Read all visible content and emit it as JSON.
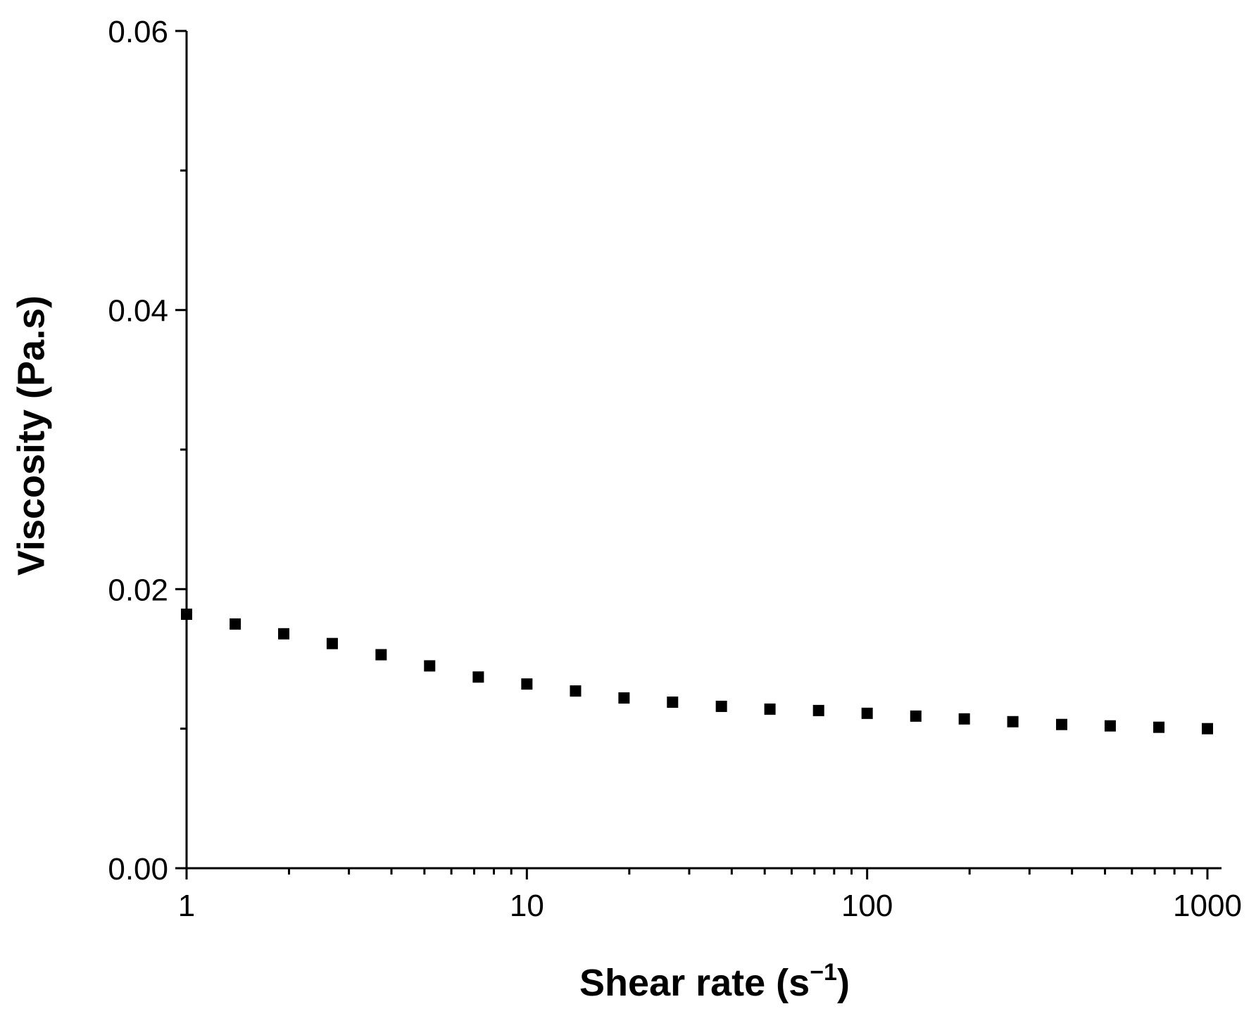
{
  "chart_data": {
    "type": "scatter",
    "title": "",
    "xlabel": "Shear rate (s",
    "xlabel_sup": "−1",
    "xlabel_close": ")",
    "ylabel": "Viscosity (Pa.s)",
    "xscale": "log",
    "xlim": [
      1,
      1000
    ],
    "ylim": [
      0,
      0.06
    ],
    "x_ticks": [
      1,
      10,
      100,
      1000
    ],
    "x_tick_labels": [
      "1",
      "10",
      "100",
      "1000"
    ],
    "y_ticks": [
      0,
      0.02,
      0.04,
      0.06
    ],
    "y_tick_labels": [
      "0.00",
      "0.02",
      "0.04",
      "0.06"
    ],
    "y_minor_ticks": [
      0.01,
      0.03,
      0.05
    ],
    "grid": false,
    "legend": "none",
    "marker": "square",
    "marker_color": "#000000",
    "series": [
      {
        "x": [
          1,
          1.39,
          1.93,
          2.68,
          3.73,
          5.18,
          7.2,
          10,
          13.9,
          19.3,
          26.8,
          37.3,
          51.8,
          72,
          100,
          139,
          193,
          268,
          373,
          518,
          720,
          1000
        ],
        "y": [
          0.0182,
          0.0175,
          0.0168,
          0.0161,
          0.0153,
          0.0145,
          0.0137,
          0.0132,
          0.0127,
          0.0122,
          0.0119,
          0.0116,
          0.0114,
          0.0113,
          0.0111,
          0.0109,
          0.0107,
          0.0105,
          0.0103,
          0.0102,
          0.0101,
          0.01
        ]
      }
    ]
  }
}
